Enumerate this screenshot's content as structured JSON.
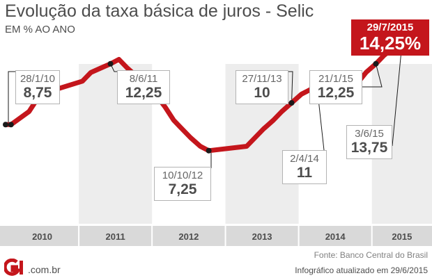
{
  "header": {
    "title": "Evolução da taxa básica de juros - Selic",
    "subtitle": "EM % AO ANO"
  },
  "chart_data": {
    "type": "line",
    "x": [
      "2010-01-01",
      "2010-01-28",
      "2010-04-28",
      "2010-06-09",
      "2010-07-21",
      "2010-09-01",
      "2011-01-19",
      "2011-03-02",
      "2011-04-20",
      "2011-06-08",
      "2011-07-20",
      "2011-08-31",
      "2011-10-19",
      "2011-11-30",
      "2012-01-18",
      "2012-03-07",
      "2012-04-18",
      "2012-05-30",
      "2012-07-11",
      "2012-08-29",
      "2012-10-10",
      "2013-04-17",
      "2013-05-29",
      "2013-07-10",
      "2013-08-28",
      "2013-10-09",
      "2013-11-27",
      "2014-01-15",
      "2014-02-26",
      "2014-04-02",
      "2014-10-29",
      "2014-12-03",
      "2015-01-21",
      "2015-03-04",
      "2015-04-29",
      "2015-06-03",
      "2015-07-29"
    ],
    "y": [
      8.75,
      8.75,
      9.5,
      10.25,
      10.75,
      10.75,
      11.25,
      11.75,
      12,
      12.25,
      12.5,
      12,
      11.5,
      11,
      10.5,
      9.75,
      9,
      8.5,
      8,
      7.5,
      7.25,
      7.5,
      8,
      8.5,
      9,
      9.5,
      10,
      10.5,
      10.75,
      11,
      11.25,
      11.75,
      12.25,
      12.75,
      13.25,
      13.75,
      14.25
    ],
    "categories": [
      "2010",
      "2011",
      "2012",
      "2013",
      "2014",
      "2015"
    ],
    "ylim": [
      6,
      15
    ],
    "grid": "alternating year bands",
    "line_color": "#c4161c",
    "annotations": [
      {
        "date": "28/1/10",
        "value": "8,75",
        "x": "2010-01-28"
      },
      {
        "date": "8/6/11",
        "value": "12,25",
        "x": "2011-06-08"
      },
      {
        "date": "10/10/12",
        "value": "7,25",
        "x": "2012-10-10"
      },
      {
        "date": "27/11/13",
        "value": "10",
        "x": "2013-11-27"
      },
      {
        "date": "2/4/14",
        "value": "11",
        "x": "2014-04-02"
      },
      {
        "date": "21/1/15",
        "value": "12,25",
        "x": "2015-01-21"
      },
      {
        "date": "3/6/15",
        "value": "13,75",
        "x": "2015-06-03"
      }
    ],
    "highlight": {
      "date": "29/7/2015",
      "value": "14,25%",
      "x": "2015-07-29",
      "color": "#c4161c"
    }
  },
  "footer": {
    "source": "Fonte: Banco Central do Brasil",
    "logo": "G1",
    "logo_suffix": ".com.br",
    "updated": "Infográfico atualizado em 29/6/2015"
  }
}
